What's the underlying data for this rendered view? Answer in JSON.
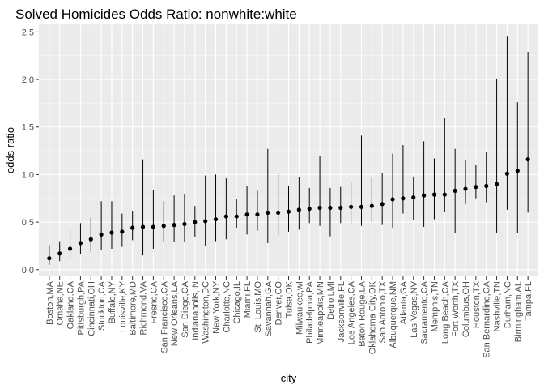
{
  "chart_data": {
    "type": "scatter",
    "title": "Solved Homicides Odds Ratio: nonwhite:white",
    "xlabel": "city",
    "ylabel": "odds ratio",
    "ylim": [
      -0.07,
      2.58
    ],
    "y_ticks": [
      "0.0",
      "0.5",
      "1.0",
      "1.5",
      "2.0",
      "2.5"
    ],
    "grid": true,
    "colors": {
      "panel": "#ebebeb",
      "grid_major": "#ffffff",
      "point": "#000000",
      "tick_text": "#4d4d4d"
    },
    "categories": [
      "Boston,MA",
      "Omaha,NE",
      "Oakland,CA",
      "Pittsburgh,PA",
      "Cincinnati,OH",
      "Stockton,CA",
      "Buffalo,NY",
      "Louisville,KY",
      "Baltimore,MD",
      "Richmond,VA",
      "Fresno,CA",
      "San Francisco,CA",
      "New Orleans,LA",
      "San Diego,CA",
      "Indianapolis,IN",
      "Washington,DC",
      "New York,NY",
      "Charlotte,NC",
      "Chicago,IL",
      "Miami,FL",
      "St. Louis,MO",
      "Savannah,GA",
      "Denver,CO",
      "Tulsa,OK",
      "Milwaukee,wI",
      "Philadelphia,PA",
      "Minneapolis,MN",
      "Detroit,MI",
      "Jacksonville,FL",
      "Los Angeles,CA",
      "Baton Rouge,LA",
      "Oklahoma City,OK",
      "San Antonio,TX",
      "Albuquerque,NM",
      "Atlanta,GA",
      "Las Vegas,NV",
      "Sacramento,CA",
      "Memphis,TN",
      "Long Beach,CA",
      "Fort Worth,TX",
      "Columbus,OH",
      "Houston,TX",
      "San Bernardino,CA",
      "Nashville,TN",
      "Durham,NC",
      "Birmingham,AL",
      "Tampa,FL"
    ],
    "values": [
      0.12,
      0.17,
      0.22,
      0.28,
      0.32,
      0.37,
      0.39,
      0.4,
      0.44,
      0.45,
      0.45,
      0.46,
      0.47,
      0.48,
      0.5,
      0.51,
      0.53,
      0.56,
      0.56,
      0.58,
      0.58,
      0.6,
      0.6,
      0.61,
      0.63,
      0.64,
      0.65,
      0.65,
      0.65,
      0.66,
      0.66,
      0.67,
      0.69,
      0.74,
      0.75,
      0.76,
      0.78,
      0.79,
      0.79,
      0.83,
      0.85,
      0.87,
      0.88,
      0.9,
      1.01,
      1.04,
      1.16
    ],
    "lower": [
      0.05,
      0.09,
      0.12,
      0.16,
      0.19,
      0.21,
      0.22,
      0.24,
      0.31,
      0.15,
      0.22,
      0.29,
      0.29,
      0.29,
      0.34,
      0.25,
      0.3,
      0.32,
      0.44,
      0.37,
      0.41,
      0.28,
      0.36,
      0.4,
      0.42,
      0.49,
      0.46,
      0.35,
      0.49,
      0.49,
      0.46,
      0.5,
      0.47,
      0.44,
      0.59,
      0.52,
      0.45,
      0.53,
      0.61,
      0.39,
      0.69,
      0.75,
      0.71,
      0.39,
      0.63,
      0.39,
      0.6
    ],
    "upper": [
      0.26,
      0.3,
      0.42,
      0.49,
      0.55,
      0.72,
      0.72,
      0.59,
      0.62,
      1.16,
      0.84,
      0.72,
      0.78,
      0.79,
      0.67,
      0.99,
      1.0,
      0.96,
      0.74,
      0.88,
      0.83,
      1.27,
      1.01,
      0.88,
      0.97,
      0.86,
      1.2,
      0.86,
      0.87,
      0.93,
      1.41,
      0.97,
      1.02,
      1.22,
      1.31,
      0.98,
      1.35,
      1.17,
      1.6,
      1.27,
      1.15,
      1.1,
      1.24,
      2.01,
      2.45,
      1.76,
      2.29
    ]
  }
}
